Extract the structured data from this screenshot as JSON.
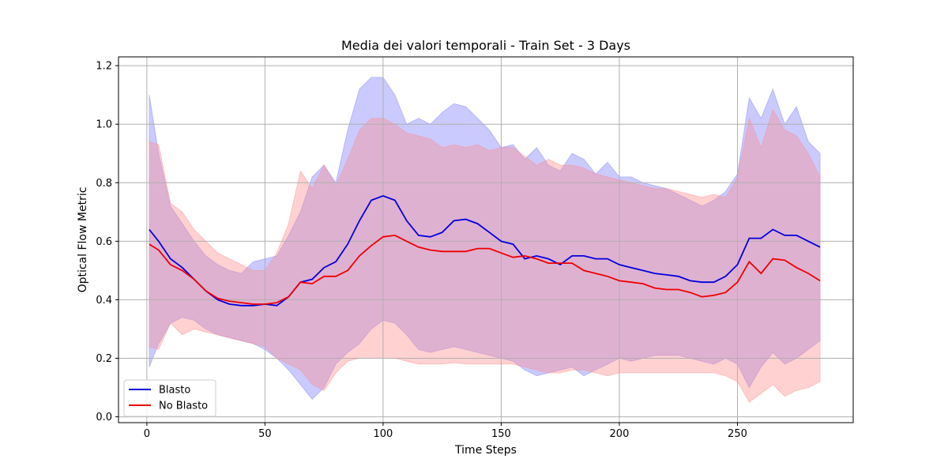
{
  "chart_data": {
    "type": "line",
    "title": "Media dei valori temporali - Train Set - 3 Days",
    "xlabel": "Time Steps",
    "ylabel": "Optical Flow Metric",
    "xlim": [
      -12,
      299
    ],
    "ylim": [
      -0.02,
      1.23
    ],
    "xticks": [
      0,
      50,
      100,
      150,
      200,
      250
    ],
    "yticks": [
      0.0,
      0.2,
      0.4,
      0.6,
      0.8,
      1.0,
      1.2
    ],
    "grid": true,
    "legend_position": "lower-left",
    "series": [
      {
        "name": "Blasto",
        "color": "#0000dd",
        "band_color": "#7b7bff",
        "x": [
          1,
          5,
          10,
          15,
          20,
          25,
          30,
          35,
          40,
          45,
          50,
          55,
          60,
          65,
          70,
          75,
          80,
          85,
          90,
          95,
          100,
          105,
          110,
          115,
          120,
          125,
          130,
          135,
          140,
          145,
          150,
          155,
          160,
          165,
          170,
          175,
          180,
          185,
          190,
          195,
          200,
          205,
          210,
          215,
          220,
          225,
          230,
          235,
          240,
          245,
          250,
          255,
          260,
          265,
          270,
          275,
          280,
          285
        ],
        "mean": [
          0.64,
          0.6,
          0.54,
          0.51,
          0.47,
          0.43,
          0.4,
          0.385,
          0.38,
          0.38,
          0.385,
          0.38,
          0.41,
          0.46,
          0.47,
          0.51,
          0.53,
          0.59,
          0.67,
          0.74,
          0.755,
          0.74,
          0.67,
          0.62,
          0.615,
          0.63,
          0.67,
          0.675,
          0.66,
          0.63,
          0.6,
          0.59,
          0.54,
          0.55,
          0.54,
          0.52,
          0.55,
          0.55,
          0.54,
          0.54,
          0.52,
          0.51,
          0.5,
          0.49,
          0.485,
          0.48,
          0.465,
          0.46,
          0.46,
          0.48,
          0.52,
          0.61,
          0.61,
          0.64,
          0.62,
          0.62,
          0.6,
          0.58
        ],
        "upper": [
          1.1,
          0.9,
          0.72,
          0.66,
          0.6,
          0.55,
          0.52,
          0.5,
          0.49,
          0.53,
          0.54,
          0.55,
          0.62,
          0.7,
          0.82,
          0.86,
          0.8,
          0.98,
          1.12,
          1.16,
          1.16,
          1.1,
          1.0,
          1.02,
          1.0,
          1.04,
          1.07,
          1.06,
          1.02,
          0.98,
          0.92,
          0.93,
          0.88,
          0.92,
          0.86,
          0.84,
          0.9,
          0.88,
          0.83,
          0.87,
          0.82,
          0.82,
          0.8,
          0.79,
          0.78,
          0.76,
          0.74,
          0.72,
          0.74,
          0.77,
          0.83,
          1.09,
          1.02,
          1.12,
          1.0,
          1.06,
          0.94,
          0.9
        ],
        "lower": [
          0.17,
          0.25,
          0.32,
          0.34,
          0.33,
          0.3,
          0.28,
          0.27,
          0.26,
          0.25,
          0.23,
          0.2,
          0.16,
          0.11,
          0.06,
          0.1,
          0.18,
          0.22,
          0.25,
          0.3,
          0.33,
          0.32,
          0.28,
          0.23,
          0.22,
          0.23,
          0.24,
          0.23,
          0.22,
          0.21,
          0.2,
          0.19,
          0.16,
          0.14,
          0.15,
          0.16,
          0.17,
          0.14,
          0.16,
          0.18,
          0.2,
          0.19,
          0.2,
          0.21,
          0.21,
          0.21,
          0.2,
          0.19,
          0.18,
          0.2,
          0.18,
          0.1,
          0.17,
          0.22,
          0.18,
          0.2,
          0.23,
          0.26
        ]
      },
      {
        "name": "No Blasto",
        "color": "#ee0000",
        "band_color": "#ff8c8c",
        "x": [
          1,
          5,
          10,
          15,
          20,
          25,
          30,
          35,
          40,
          45,
          50,
          55,
          60,
          65,
          70,
          75,
          80,
          85,
          90,
          95,
          100,
          105,
          110,
          115,
          120,
          125,
          130,
          135,
          140,
          145,
          150,
          155,
          160,
          165,
          170,
          175,
          180,
          185,
          190,
          195,
          200,
          205,
          210,
          215,
          220,
          225,
          230,
          235,
          240,
          245,
          250,
          255,
          260,
          265,
          270,
          275,
          280,
          285
        ],
        "mean": [
          0.59,
          0.57,
          0.52,
          0.5,
          0.47,
          0.43,
          0.405,
          0.395,
          0.39,
          0.385,
          0.385,
          0.39,
          0.41,
          0.46,
          0.455,
          0.48,
          0.48,
          0.5,
          0.55,
          0.585,
          0.615,
          0.62,
          0.6,
          0.58,
          0.57,
          0.565,
          0.565,
          0.565,
          0.575,
          0.575,
          0.56,
          0.545,
          0.55,
          0.54,
          0.525,
          0.525,
          0.525,
          0.5,
          0.49,
          0.48,
          0.465,
          0.46,
          0.455,
          0.44,
          0.435,
          0.435,
          0.425,
          0.41,
          0.415,
          0.425,
          0.46,
          0.53,
          0.49,
          0.54,
          0.535,
          0.51,
          0.49,
          0.465
        ],
        "upper": [
          0.94,
          0.93,
          0.73,
          0.7,
          0.64,
          0.6,
          0.56,
          0.54,
          0.52,
          0.5,
          0.5,
          0.56,
          0.66,
          0.84,
          0.78,
          0.86,
          0.79,
          0.88,
          0.98,
          1.02,
          1.02,
          1.0,
          0.97,
          0.96,
          0.95,
          0.92,
          0.93,
          0.92,
          0.93,
          0.91,
          0.92,
          0.92,
          0.89,
          0.86,
          0.88,
          0.86,
          0.86,
          0.85,
          0.83,
          0.82,
          0.81,
          0.8,
          0.79,
          0.78,
          0.78,
          0.77,
          0.76,
          0.75,
          0.76,
          0.75,
          0.82,
          1.02,
          0.92,
          1.05,
          0.98,
          0.96,
          0.9,
          0.82
        ],
        "lower": [
          0.24,
          0.23,
          0.32,
          0.28,
          0.3,
          0.29,
          0.28,
          0.27,
          0.26,
          0.25,
          0.24,
          0.2,
          0.18,
          0.16,
          0.11,
          0.09,
          0.15,
          0.19,
          0.2,
          0.2,
          0.2,
          0.2,
          0.19,
          0.18,
          0.18,
          0.18,
          0.185,
          0.18,
          0.18,
          0.18,
          0.18,
          0.18,
          0.17,
          0.16,
          0.15,
          0.15,
          0.16,
          0.16,
          0.15,
          0.14,
          0.15,
          0.15,
          0.15,
          0.15,
          0.15,
          0.15,
          0.15,
          0.15,
          0.15,
          0.14,
          0.12,
          0.05,
          0.08,
          0.11,
          0.07,
          0.09,
          0.1,
          0.12
        ]
      }
    ]
  }
}
